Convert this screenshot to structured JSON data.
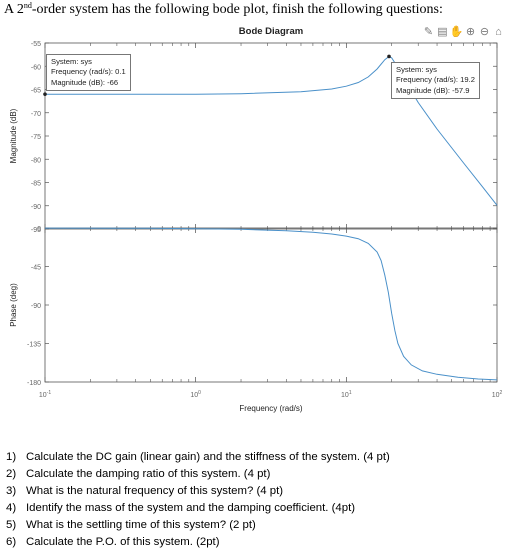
{
  "intro": {
    "pre": "A 2",
    "sup": "nd",
    "post": "-order system has the following bode plot, finish the following questions:"
  },
  "toolbar": {
    "icons": [
      "brush-icon",
      "datatip-icon",
      "pan-icon",
      "zoom-in-icon",
      "zoom-out-icon",
      "home-icon"
    ]
  },
  "chart_data": {
    "type": "line",
    "title": "Bode Diagram",
    "xlabel": "Frequency  (rad/s)",
    "x_scale": "log",
    "xlim": [
      0.1,
      100
    ],
    "x_ticks": [
      0.1,
      1,
      10,
      100
    ],
    "x_tick_labels": [
      {
        "base": "10",
        "exp": "-1"
      },
      {
        "base": "10",
        "exp": "0"
      },
      {
        "base": "10",
        "exp": "1"
      },
      {
        "base": "10",
        "exp": "2"
      }
    ],
    "line_color": "#4a90c9",
    "grid": false,
    "panels": [
      {
        "ylabel": "Magnitude (dB)",
        "ylim": [
          -95,
          -55
        ],
        "y_ticks": [
          -55,
          -60,
          -65,
          -70,
          -75,
          -80,
          -85,
          -90,
          -95
        ],
        "y_tick_labels": [
          "-55",
          "-60",
          "-65",
          "-70",
          "-75",
          "-80",
          "-85",
          "-90",
          "-95"
        ],
        "series": [
          {
            "x": [
              0.1,
              0.2,
              0.5,
              1,
              2,
              5,
              8,
              10,
              12,
              14,
              16,
              18,
              19.2,
              20,
              22,
              25,
              30,
              40,
              60,
              80,
              100
            ],
            "y": [
              -66,
              -66,
              -66,
              -66,
              -65.9,
              -65.5,
              -64.9,
              -64.3,
              -63.5,
              -62.3,
              -60.6,
              -58.6,
              -57.9,
              -58.2,
              -60.3,
              -63.5,
              -67.8,
              -73.5,
              -80.8,
              -85.9,
              -89.9
            ]
          }
        ],
        "datatips": [
          {
            "x": 0.1,
            "y": -66,
            "lines": [
              "System: sys",
              "Frequency (rad/s): 0.1",
              "Magnitude (dB): -66"
            ]
          },
          {
            "x": 19.2,
            "y": -57.9,
            "lines": [
              "System: sys",
              "Frequency (rad/s): 19.2",
              "Magnitude (dB): -57.9"
            ]
          }
        ]
      },
      {
        "ylabel": "Phase (deg)",
        "ylim": [
          -180,
          0
        ],
        "y_ticks": [
          0,
          -45,
          -90,
          -135,
          -180
        ],
        "y_tick_labels": [
          "0",
          "-45",
          "-90",
          "-135",
          "-180"
        ],
        "series": [
          {
            "x": [
              0.1,
              0.5,
              1,
              2,
              4,
              6,
              8,
              10,
              12,
              14,
              16,
              17,
              18,
              19,
              20,
              21,
              22,
              24,
              27,
              32,
              40,
              55,
              75,
              100
            ],
            "y": [
              -0.1,
              -0.4,
              -0.8,
              -1.5,
              -3.2,
              -5,
              -7,
              -9.5,
              -12.5,
              -18,
              -28,
              -38,
              -55,
              -75,
              -100,
              -120,
              -135,
              -150,
              -160,
              -167,
              -171,
              -174.5,
              -176.5,
              -177.5
            ]
          }
        ]
      }
    ]
  },
  "questions": [
    {
      "num": "1)",
      "text": "Calculate the DC gain (linear gain) and the stiffness of the system. (4 pt)"
    },
    {
      "num": "2)",
      "text": "Calculate the damping ratio of this system. (4 pt)"
    },
    {
      "num": "3)",
      "text": "What is the natural frequency of this system? (4 pt)"
    },
    {
      "num": "4)",
      "text": "Identify the mass of the system and the damping coefficient. (4pt)"
    },
    {
      "num": "5)",
      "text": "What is the settling time of this system? (2 pt)"
    },
    {
      "num": "6)",
      "text": "Calculate the P.O. of this system. (2pt)"
    }
  ]
}
